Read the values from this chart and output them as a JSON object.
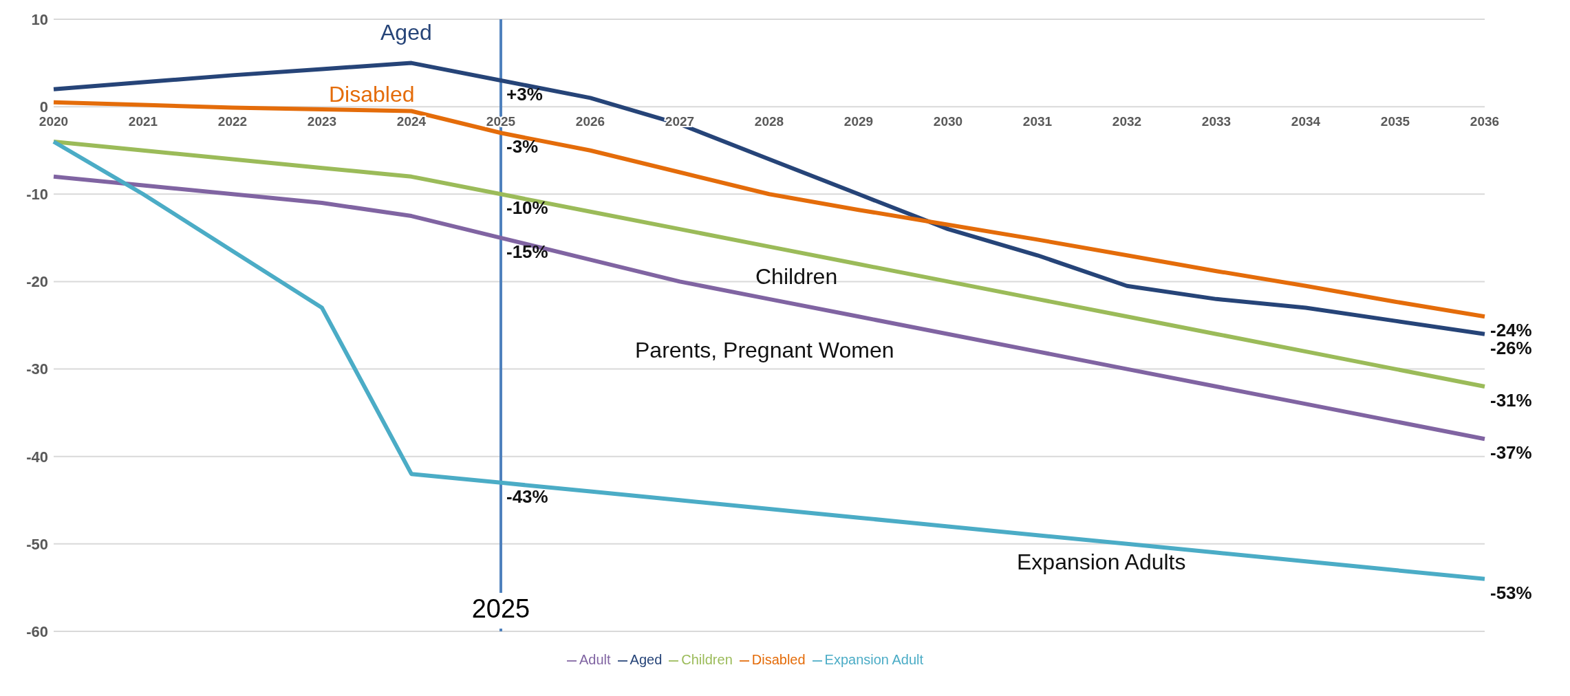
{
  "chart_data": {
    "type": "line",
    "categories": [
      "2020",
      "2021",
      "2022",
      "2023",
      "2024",
      "2025",
      "2026",
      "2027",
      "2028",
      "2029",
      "2030",
      "2031",
      "2032",
      "2033",
      "2034",
      "2035",
      "2036"
    ],
    "series": [
      {
        "name": "Aged",
        "color": "#264478",
        "values": [
          2,
          2.8,
          3.6,
          4.3,
          5,
          3,
          1,
          -2,
          -6,
          -10,
          -14,
          -17,
          -20.5,
          -22,
          -23,
          -24.5,
          -26
        ]
      },
      {
        "name": "Disabled",
        "color": "#e46c0a",
        "values": [
          0.5,
          0.2,
          -0.1,
          -0.3,
          -0.5,
          -3,
          -5,
          -7.5,
          -10,
          -11.8,
          -13.5,
          -15.2,
          -17,
          -18.8,
          -20.5,
          -22.3,
          -24
        ]
      },
      {
        "name": "Children",
        "color": "#9bbb59",
        "values": [
          -4,
          -5,
          -6,
          -7,
          -8,
          -10,
          -12,
          -14,
          -16,
          -18,
          -20,
          -22,
          -24,
          -26,
          -28,
          -30,
          -32
        ]
      },
      {
        "name": "Adult",
        "color": "#8064a2",
        "values": [
          -8,
          -9,
          -10,
          -11,
          -12.5,
          -15,
          -17.5,
          -20,
          -22,
          -24,
          -26,
          -28,
          -30,
          -32,
          -34,
          -36,
          -38
        ]
      },
      {
        "name": "Expansion Adult",
        "color": "#4bacc6",
        "values": [
          -4,
          -10,
          -16.5,
          -23,
          -42,
          -43,
          -44,
          -45,
          -46,
          -47,
          -48,
          -49,
          -50,
          -51,
          -52,
          -53,
          -54
        ]
      }
    ],
    "ylim": [
      -60,
      10
    ],
    "yticks": [
      -60,
      -50,
      -40,
      -30,
      -20,
      -10,
      0,
      10
    ],
    "grid": "y",
    "legend": "bottom",
    "marker": "none",
    "line_style": "solid",
    "ref_lines": [
      {
        "axis": "x",
        "value": "2025",
        "label": "2025",
        "color": "#4f81bd"
      }
    ],
    "annotations": [
      "Aged",
      "Disabled",
      {
        "text": "+3%",
        "x": "2025",
        "y": 3
      },
      {
        "text": "-3%",
        "x": "2025",
        "y": -3
      },
      {
        "text": "-10%",
        "x": "2025",
        "y": -10
      },
      {
        "text": "-15%",
        "x": "2025",
        "y": -15
      },
      {
        "text": "-43%",
        "x": "2025",
        "y": -43
      },
      "Children",
      "Parents, Pregnant Women",
      "Expansion Adults",
      {
        "text": "-24%",
        "x": "2036",
        "y": -24
      },
      {
        "text": "-26%",
        "x": "2036",
        "y": -26
      },
      {
        "text": "-31%",
        "x": "2036",
        "y": -32
      },
      {
        "text": "-37%",
        "x": "2036",
        "y": -38
      },
      {
        "text": "-53%",
        "x": "2036",
        "y": -54
      }
    ]
  }
}
